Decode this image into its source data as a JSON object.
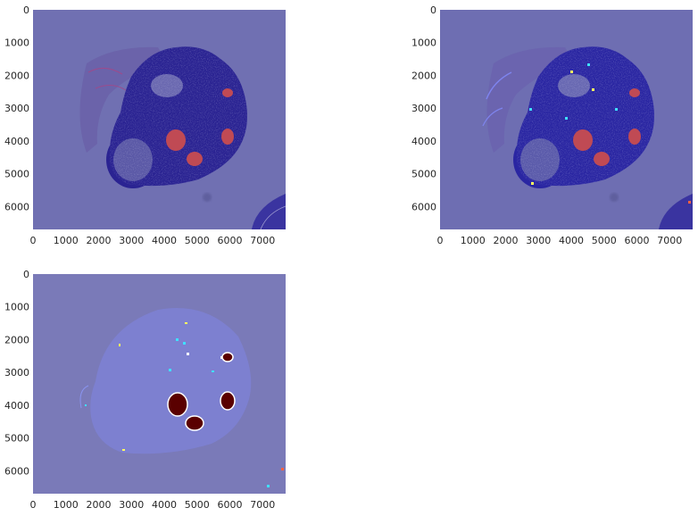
{
  "chart_data": [
    {
      "type": "heatmap",
      "panel": "top-left",
      "content": "tissue image with overlay",
      "xlim": [
        0,
        7700
      ],
      "ylim": [
        6700,
        0
      ],
      "xticks": [
        "0",
        "1000",
        "2000",
        "3000",
        "4000",
        "5000",
        "6000",
        "7000"
      ],
      "yticks": [
        "0",
        "1000",
        "2000",
        "3000",
        "4000",
        "5000",
        "6000"
      ],
      "grid": false
    },
    {
      "type": "heatmap",
      "panel": "top-right",
      "content": "tissue image with heatmap overlay",
      "xlim": [
        0,
        7700
      ],
      "ylim": [
        6700,
        0
      ],
      "xticks": [
        "0",
        "1000",
        "2000",
        "3000",
        "4000",
        "5000",
        "6000",
        "7000"
      ],
      "yticks": [
        "0",
        "1000",
        "2000",
        "3000",
        "4000",
        "5000",
        "6000"
      ],
      "grid": false
    },
    {
      "type": "heatmap",
      "panel": "bottom-left",
      "content": "heatmap only",
      "xlim": [
        0,
        7700
      ],
      "ylim": [
        6700,
        0
      ],
      "xticks": [
        "0",
        "1000",
        "2000",
        "3000",
        "4000",
        "5000",
        "6000",
        "7000"
      ],
      "yticks": [
        "0",
        "1000",
        "2000",
        "3000",
        "4000",
        "5000",
        "6000"
      ],
      "grid": false
    }
  ],
  "colors": {
    "background_overlay": "#7272b4",
    "tissue": "#2c2894",
    "tumor": "#c85050",
    "hot": "#5a0000"
  }
}
